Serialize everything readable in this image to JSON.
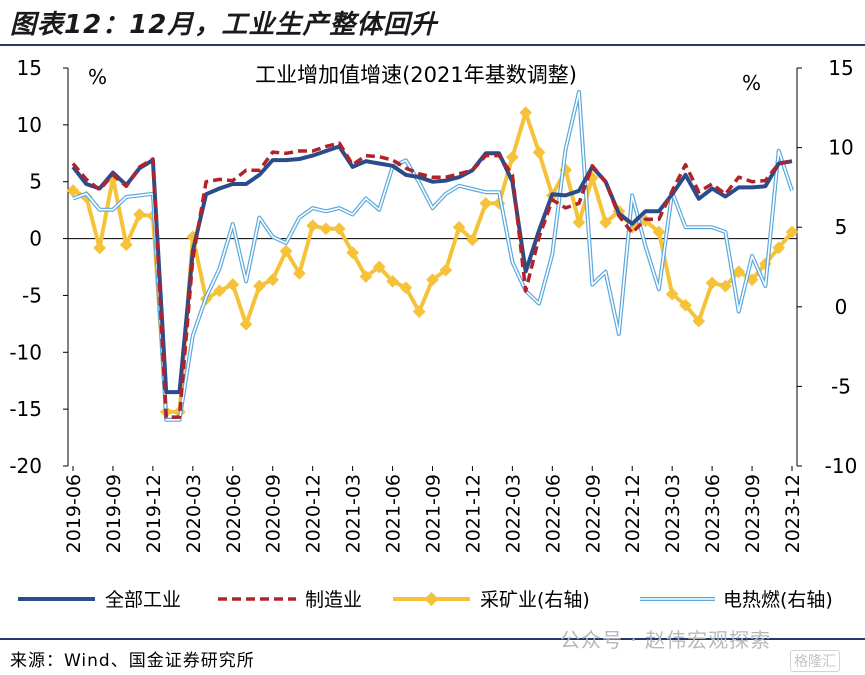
{
  "figure": {
    "title": "图表12：12月，工业生产整体回升",
    "source": "来源：Wind、国金证券研究所",
    "watermark": "公众号 · 赵伟宏观探索",
    "brand": "格隆汇"
  },
  "chart_data": {
    "type": "line",
    "title": "工业增加值增速(2021年基数调整)",
    "y_left_unit": "%",
    "y_right_unit": "%",
    "y_left_ticks": [
      15,
      10,
      5,
      0,
      -5,
      -10,
      -15,
      -20
    ],
    "y_right_ticks": [
      15,
      10,
      5,
      0,
      -5,
      -10
    ],
    "ylim_left": [
      -20,
      15
    ],
    "ylim_right": [
      -10,
      15
    ],
    "x_tick_labels": [
      "2019-06",
      "2019-09",
      "2019-12",
      "2020-03",
      "2020-06",
      "2020-09",
      "2020-12",
      "2021-03",
      "2021-06",
      "2021-09",
      "2021-12",
      "2022-03",
      "2022-06",
      "2022-09",
      "2022-12",
      "2023-03",
      "2023-06",
      "2023-09",
      "2023-12"
    ],
    "x": [
      "2019-06",
      "2019-07",
      "2019-08",
      "2019-09",
      "2019-10",
      "2019-11",
      "2019-12",
      "2020-01",
      "2020-02",
      "2020-03",
      "2020-04",
      "2020-05",
      "2020-06",
      "2020-07",
      "2020-08",
      "2020-09",
      "2020-10",
      "2020-11",
      "2020-12",
      "2021-01",
      "2021-02",
      "2021-03",
      "2021-04",
      "2021-05",
      "2021-06",
      "2021-07",
      "2021-08",
      "2021-09",
      "2021-10",
      "2021-11",
      "2021-12",
      "2022-01",
      "2022-02",
      "2022-03",
      "2022-04",
      "2022-05",
      "2022-06",
      "2022-07",
      "2022-08",
      "2022-09",
      "2022-10",
      "2022-11",
      "2022-12",
      "2023-01",
      "2023-02",
      "2023-03",
      "2023-04",
      "2023-05",
      "2023-06",
      "2023-07",
      "2023-08",
      "2023-09",
      "2023-10",
      "2023-11",
      "2023-12"
    ],
    "series": [
      {
        "name": "全部工业",
        "axis": "left",
        "color": "#2b4c8c",
        "style": "solid",
        "values": [
          6.3,
          4.8,
          4.4,
          5.8,
          4.7,
          6.2,
          6.9,
          -13.5,
          -13.5,
          -1.1,
          3.9,
          4.4,
          4.8,
          4.8,
          5.6,
          6.9,
          6.9,
          7.0,
          7.3,
          7.7,
          8.1,
          6.3,
          6.8,
          6.6,
          6.4,
          5.6,
          5.4,
          5.0,
          5.1,
          5.4,
          6.0,
          7.5,
          7.5,
          5.0,
          -2.9,
          0.7,
          3.9,
          3.8,
          4.2,
          6.3,
          5.0,
          2.2,
          1.3,
          2.4,
          2.4,
          3.9,
          5.6,
          3.5,
          4.4,
          3.7,
          4.5,
          4.5,
          4.6,
          6.6,
          6.8
        ]
      },
      {
        "name": "制造业",
        "axis": "left",
        "color": "#b0232a",
        "style": "dashed",
        "values": [
          6.6,
          5.2,
          4.3,
          5.6,
          4.6,
          6.3,
          7.0,
          -15.7,
          -15.7,
          -1.8,
          5.0,
          5.2,
          5.1,
          6.0,
          6.0,
          7.6,
          7.5,
          7.7,
          7.7,
          8.1,
          8.4,
          6.5,
          7.3,
          7.2,
          6.9,
          6.2,
          5.7,
          5.4,
          5.4,
          5.7,
          6.0,
          7.3,
          7.3,
          5.6,
          -4.6,
          0.1,
          3.4,
          2.7,
          3.1,
          6.4,
          5.0,
          2.0,
          0.5,
          1.7,
          1.7,
          4.2,
          6.5,
          4.1,
          4.8,
          3.9,
          5.4,
          5.0,
          5.1,
          6.6,
          6.8
        ]
      },
      {
        "name": "采矿业(右轴)",
        "axis": "right",
        "color": "#f5c23a",
        "style": "marker",
        "values": [
          7.3,
          6.9,
          3.7,
          8.1,
          3.9,
          5.8,
          5.7,
          -6.6,
          -6.6,
          4.4,
          0.5,
          1.0,
          1.4,
          -1.1,
          1.3,
          1.7,
          3.5,
          2.1,
          5.1,
          4.9,
          4.9,
          3.4,
          1.9,
          2.5,
          1.6,
          1.2,
          -0.3,
          1.7,
          2.3,
          5.0,
          4.2,
          6.5,
          6.5,
          9.4,
          12.2,
          9.7,
          7.0,
          8.6,
          5.3,
          8.1,
          5.3,
          6.0,
          5.0,
          5.4,
          4.7,
          0.8,
          0.1,
          -0.9,
          1.5,
          1.3,
          2.2,
          1.7,
          2.7,
          3.7,
          4.7
        ]
      },
      {
        "name": "电热燃(右轴)",
        "axis": "right",
        "color": "#5aa8dc",
        "style": "double",
        "values": [
          6.8,
          7.1,
          6.1,
          6.1,
          6.9,
          7.0,
          7.1,
          -7.1,
          -7.1,
          -1.8,
          0.6,
          2.4,
          5.2,
          1.6,
          5.6,
          4.4,
          4.0,
          5.6,
          6.2,
          6.0,
          6.2,
          5.8,
          6.8,
          6.1,
          8.8,
          9.2,
          7.8,
          6.2,
          7.1,
          7.6,
          7.4,
          7.2,
          7.2,
          2.8,
          1.0,
          0.2,
          3.3,
          9.9,
          13.5,
          1.4,
          2.2,
          -1.7,
          7.0,
          3.8,
          1.1,
          7.2,
          5.0,
          5.0,
          5.0,
          4.7,
          -0.3,
          3.2,
          1.3,
          9.8,
          7.3
        ]
      }
    ]
  }
}
